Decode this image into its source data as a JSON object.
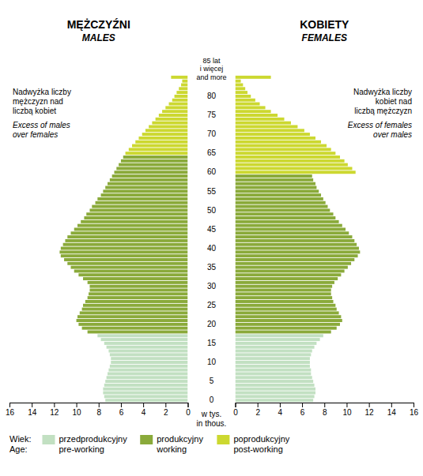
{
  "chart_data": {
    "type": "bar",
    "orientation": "horizontal",
    "legend": "bottom",
    "legend_title": "Wiek:\nAge:",
    "legend_entries": [
      {
        "name": "przedprodukcyjny\npre-working",
        "color": "#c2e0c2"
      },
      {
        "name": "produkcyjny\nworking",
        "color": "#8aaa3a"
      },
      {
        "name": "poprodukcyjny\npost-working",
        "color": "#ccd830"
      }
    ],
    "xlabel": "w tys.\nin thous.",
    "categories": [
      "0",
      null,
      null,
      null,
      null,
      "5",
      null,
      null,
      null,
      null,
      "10",
      null,
      null,
      null,
      null,
      "15",
      null,
      null,
      null,
      null,
      "20",
      null,
      null,
      null,
      null,
      "25",
      null,
      null,
      null,
      null,
      "30",
      null,
      null,
      null,
      null,
      "35",
      null,
      null,
      null,
      null,
      "40",
      null,
      null,
      null,
      null,
      "45",
      null,
      null,
      null,
      null,
      "50",
      null,
      null,
      null,
      null,
      "55",
      null,
      null,
      null,
      null,
      "60",
      null,
      null,
      null,
      null,
      "65",
      null,
      null,
      null,
      null,
      "70",
      null,
      null,
      null,
      null,
      "75",
      null,
      null,
      null,
      null,
      "80",
      null,
      null,
      null,
      null,
      "85 lat\ni więcej\nand more"
    ],
    "series": [
      {
        "name": "MĘŻCZYŹNI\nMALES",
        "xlim": [
          16,
          0
        ],
        "xticks": [
          0,
          2,
          4,
          6,
          8,
          10,
          12,
          14,
          16
        ],
        "annotations": [
          "Nadwyżka liczby\nmężczyzn nad\nliczbą kobiet",
          "Excess of males\nover females"
        ],
        "values": [
          7.4,
          7.5,
          7.6,
          7.6,
          7.5,
          7.4,
          7.3,
          7.2,
          7.1,
          7.0,
          6.9,
          6.9,
          7.0,
          7.1,
          7.3,
          7.5,
          7.8,
          8.1,
          9.0,
          9.5,
          9.8,
          10.0,
          9.9,
          9.7,
          9.5,
          9.4,
          9.2,
          9.0,
          8.9,
          8.8,
          8.8,
          9.0,
          9.4,
          9.8,
          10.2,
          10.5,
          10.8,
          11.1,
          11.4,
          11.5,
          11.4,
          11.2,
          11.0,
          10.8,
          10.5,
          10.2,
          9.9,
          9.6,
          9.3,
          9.1,
          8.8,
          8.6,
          8.3,
          8.1,
          7.8,
          7.6,
          7.4,
          7.2,
          7.0,
          6.8,
          6.6,
          6.4,
          6.2,
          6.0,
          5.8,
          5.6,
          5.3,
          5.0,
          4.7,
          4.4,
          4.1,
          3.8,
          3.5,
          3.2,
          2.9,
          2.6,
          2.3,
          2.0,
          1.7,
          1.4,
          1.2,
          1.0,
          0.8,
          0.6,
          0.5,
          1.5
        ],
        "colors": [
          "#c2e0c2",
          "#c2e0c2",
          "#c2e0c2",
          "#c2e0c2",
          "#c2e0c2",
          "#c2e0c2",
          "#c2e0c2",
          "#c2e0c2",
          "#c2e0c2",
          "#c2e0c2",
          "#c2e0c2",
          "#c2e0c2",
          "#c2e0c2",
          "#c2e0c2",
          "#c2e0c2",
          "#c2e0c2",
          "#c2e0c2",
          "#c2e0c2",
          "#8aaa3a",
          "#8aaa3a",
          "#8aaa3a",
          "#8aaa3a",
          "#8aaa3a",
          "#8aaa3a",
          "#8aaa3a",
          "#8aaa3a",
          "#8aaa3a",
          "#8aaa3a",
          "#8aaa3a",
          "#8aaa3a",
          "#8aaa3a",
          "#8aaa3a",
          "#8aaa3a",
          "#8aaa3a",
          "#8aaa3a",
          "#8aaa3a",
          "#8aaa3a",
          "#8aaa3a",
          "#8aaa3a",
          "#8aaa3a",
          "#8aaa3a",
          "#8aaa3a",
          "#8aaa3a",
          "#8aaa3a",
          "#8aaa3a",
          "#8aaa3a",
          "#8aaa3a",
          "#8aaa3a",
          "#8aaa3a",
          "#8aaa3a",
          "#8aaa3a",
          "#8aaa3a",
          "#8aaa3a",
          "#8aaa3a",
          "#8aaa3a",
          "#8aaa3a",
          "#8aaa3a",
          "#8aaa3a",
          "#8aaa3a",
          "#8aaa3a",
          "#8aaa3a",
          "#8aaa3a",
          "#8aaa3a",
          "#8aaa3a",
          "#8aaa3a",
          "#ccd830",
          "#ccd830",
          "#ccd830",
          "#ccd830",
          "#ccd830",
          "#ccd830",
          "#ccd830",
          "#ccd830",
          "#ccd830",
          "#ccd830",
          "#ccd830",
          "#ccd830",
          "#ccd830",
          "#ccd830",
          "#ccd830",
          "#ccd830",
          "#ccd830",
          "#ccd830",
          "#ccd830",
          "#ccd830",
          "#ccd830"
        ]
      },
      {
        "name": "KOBIETY\nFEMALES",
        "xlim": [
          0,
          16
        ],
        "xticks": [
          0,
          2,
          4,
          6,
          8,
          10,
          12,
          14,
          16
        ],
        "annotations": [
          "Nadwyżka liczby\nkobiet nad\nliczbą mężczyzn",
          "Excess of females\nover males"
        ],
        "values": [
          7.0,
          7.1,
          7.2,
          7.2,
          7.1,
          7.0,
          6.9,
          6.8,
          6.8,
          6.7,
          6.7,
          6.7,
          6.8,
          6.9,
          7.1,
          7.3,
          7.6,
          7.9,
          8.6,
          9.1,
          9.4,
          9.6,
          9.5,
          9.3,
          9.1,
          9.0,
          8.8,
          8.7,
          8.6,
          8.6,
          8.7,
          8.9,
          9.2,
          9.5,
          9.8,
          10.1,
          10.4,
          10.7,
          11.0,
          11.2,
          11.1,
          10.9,
          10.7,
          10.5,
          10.2,
          9.9,
          9.6,
          9.3,
          9.0,
          8.8,
          8.5,
          8.3,
          8.1,
          7.9,
          7.7,
          7.5,
          7.3,
          7.2,
          7.0,
          6.9,
          10.8,
          10.5,
          10.1,
          9.8,
          9.4,
          9.0,
          8.6,
          8.2,
          7.7,
          7.2,
          6.7,
          6.2,
          5.6,
          5.0,
          4.4,
          3.8,
          3.2,
          2.7,
          2.2,
          1.8,
          1.4,
          1.1,
          0.9,
          0.7,
          0.5,
          3.2
        ],
        "colors": [
          "#c2e0c2",
          "#c2e0c2",
          "#c2e0c2",
          "#c2e0c2",
          "#c2e0c2",
          "#c2e0c2",
          "#c2e0c2",
          "#c2e0c2",
          "#c2e0c2",
          "#c2e0c2",
          "#c2e0c2",
          "#c2e0c2",
          "#c2e0c2",
          "#c2e0c2",
          "#c2e0c2",
          "#c2e0c2",
          "#c2e0c2",
          "#c2e0c2",
          "#8aaa3a",
          "#8aaa3a",
          "#8aaa3a",
          "#8aaa3a",
          "#8aaa3a",
          "#8aaa3a",
          "#8aaa3a",
          "#8aaa3a",
          "#8aaa3a",
          "#8aaa3a",
          "#8aaa3a",
          "#8aaa3a",
          "#8aaa3a",
          "#8aaa3a",
          "#8aaa3a",
          "#8aaa3a",
          "#8aaa3a",
          "#8aaa3a",
          "#8aaa3a",
          "#8aaa3a",
          "#8aaa3a",
          "#8aaa3a",
          "#8aaa3a",
          "#8aaa3a",
          "#8aaa3a",
          "#8aaa3a",
          "#8aaa3a",
          "#8aaa3a",
          "#8aaa3a",
          "#8aaa3a",
          "#8aaa3a",
          "#8aaa3a",
          "#8aaa3a",
          "#8aaa3a",
          "#8aaa3a",
          "#8aaa3a",
          "#8aaa3a",
          "#8aaa3a",
          "#8aaa3a",
          "#8aaa3a",
          "#8aaa3a",
          "#8aaa3a",
          "#ccd830",
          "#ccd830",
          "#ccd830",
          "#ccd830",
          "#ccd830",
          "#ccd830",
          "#ccd830",
          "#ccd830",
          "#ccd830",
          "#ccd830",
          "#ccd830",
          "#ccd830",
          "#ccd830",
          "#ccd830",
          "#ccd830",
          "#ccd830",
          "#ccd830",
          "#ccd830",
          "#ccd830",
          "#ccd830",
          "#ccd830",
          "#ccd830",
          "#ccd830",
          "#ccd830",
          "#ccd830",
          "#ccd830"
        ]
      }
    ]
  }
}
